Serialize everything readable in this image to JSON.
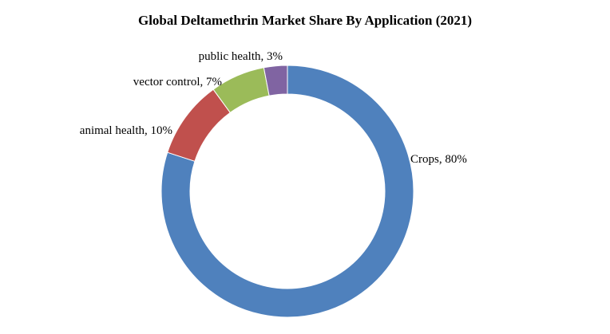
{
  "chart_data": {
    "type": "pie",
    "subtype": "donut",
    "title": "Global Deltamethrin Market Share By Application (2021)",
    "slices": [
      {
        "label": "Crops",
        "value": 80,
        "display": "Crops, 80%",
        "color": "#4F81BD"
      },
      {
        "label": "animal health",
        "value": 10,
        "display": "animal health, 10%",
        "color": "#C0504D"
      },
      {
        "label": "vector control",
        "value": 7,
        "display": "vector control, 7%",
        "color": "#9BBB59"
      },
      {
        "label": "public health",
        "value": 3,
        "display": "public health, 3%",
        "color": "#8064A2"
      }
    ],
    "legend": "none"
  }
}
